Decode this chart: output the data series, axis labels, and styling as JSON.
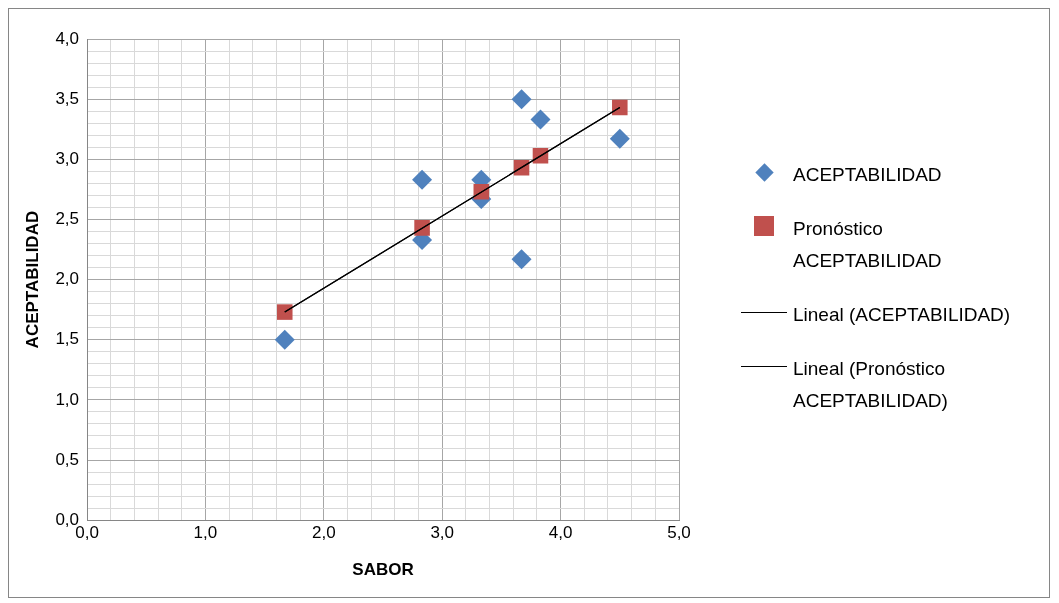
{
  "chart_data": {
    "type": "scatter",
    "xlabel": "SABOR",
    "ylabel": "ACEPTABILIDAD",
    "grid": true,
    "legend": "right",
    "xlim": [
      0,
      5
    ],
    "ylim": [
      0,
      4
    ],
    "xticks": [
      {
        "value": 0,
        "label": "0,0"
      },
      {
        "value": 0.2,
        "label": null
      },
      {
        "value": 0.4,
        "label": null
      },
      {
        "value": 0.6,
        "label": null
      },
      {
        "value": 0.8,
        "label": null
      },
      {
        "value": 1,
        "label": "1,0"
      },
      {
        "value": 1.2,
        "label": null
      },
      {
        "value": 1.4,
        "label": null
      },
      {
        "value": 1.6,
        "label": null
      },
      {
        "value": 1.8,
        "label": null
      },
      {
        "value": 2,
        "label": "2,0"
      },
      {
        "value": 2.2,
        "label": null
      },
      {
        "value": 2.4,
        "label": null
      },
      {
        "value": 2.6,
        "label": null
      },
      {
        "value": 2.8,
        "label": null
      },
      {
        "value": 3,
        "label": "3,0"
      },
      {
        "value": 3.2,
        "label": null
      },
      {
        "value": 3.4,
        "label": null
      },
      {
        "value": 3.6,
        "label": null
      },
      {
        "value": 3.8,
        "label": null
      },
      {
        "value": 4,
        "label": "4,0"
      },
      {
        "value": 4.2,
        "label": null
      },
      {
        "value": 4.4,
        "label": null
      },
      {
        "value": 4.6,
        "label": null
      },
      {
        "value": 4.8,
        "label": null
      },
      {
        "value": 5,
        "label": "5,0"
      }
    ],
    "yticks": [
      {
        "value": 0,
        "label": "0,0"
      },
      {
        "value": 0.1,
        "label": null
      },
      {
        "value": 0.2,
        "label": null
      },
      {
        "value": 0.3,
        "label": null
      },
      {
        "value": 0.4,
        "label": null
      },
      {
        "value": 0.5,
        "label": "0,5"
      },
      {
        "value": 0.6,
        "label": null
      },
      {
        "value": 0.7,
        "label": null
      },
      {
        "value": 0.8,
        "label": null
      },
      {
        "value": 0.9,
        "label": null
      },
      {
        "value": 1,
        "label": "1,0"
      },
      {
        "value": 1.1,
        "label": null
      },
      {
        "value": 1.2,
        "label": null
      },
      {
        "value": 1.3,
        "label": null
      },
      {
        "value": 1.4,
        "label": null
      },
      {
        "value": 1.5,
        "label": "1,5"
      },
      {
        "value": 1.6,
        "label": null
      },
      {
        "value": 1.7,
        "label": null
      },
      {
        "value": 1.8,
        "label": null
      },
      {
        "value": 1.9,
        "label": null
      },
      {
        "value": 2,
        "label": "2,0"
      },
      {
        "value": 2.1,
        "label": null
      },
      {
        "value": 2.2,
        "label": null
      },
      {
        "value": 2.3,
        "label": null
      },
      {
        "value": 2.4,
        "label": null
      },
      {
        "value": 2.5,
        "label": "2,5"
      },
      {
        "value": 2.6,
        "label": null
      },
      {
        "value": 2.7,
        "label": null
      },
      {
        "value": 2.8,
        "label": null
      },
      {
        "value": 2.9,
        "label": null
      },
      {
        "value": 3,
        "label": "3,0"
      },
      {
        "value": 3.1,
        "label": null
      },
      {
        "value": 3.2,
        "label": null
      },
      {
        "value": 3.3,
        "label": null
      },
      {
        "value": 3.4,
        "label": null
      },
      {
        "value": 3.5,
        "label": "3,5"
      },
      {
        "value": 3.6,
        "label": null
      },
      {
        "value": 3.7,
        "label": null
      },
      {
        "value": 3.8,
        "label": null
      },
      {
        "value": 3.9,
        "label": null
      },
      {
        "value": 4,
        "label": "4,0"
      }
    ],
    "series": [
      {
        "name": "ACEPTABILIDAD",
        "marker": "diamond",
        "color": "#4f81bd",
        "x": [
          1.67,
          2.83,
          2.83,
          3.33,
          3.33,
          3.67,
          3.67,
          3.83,
          4.5
        ],
        "values": [
          1.5,
          2.83,
          2.33,
          2.83,
          2.67,
          3.5,
          2.17,
          3.33,
          3.17
        ]
      },
      {
        "name": "Pronóstico ACEPTABILIDAD",
        "marker": "square",
        "color": "#c0504d",
        "x": [
          1.67,
          2.83,
          3.33,
          3.67,
          3.83,
          4.5
        ],
        "values": [
          1.73,
          2.43,
          2.73,
          2.93,
          3.03,
          3.43
        ]
      },
      {
        "name": "Lineal (ACEPTABILIDAD)",
        "type": "line",
        "marker": "none",
        "color": "#000000",
        "x": [
          1.67,
          4.5
        ],
        "values": [
          1.73,
          3.43
        ]
      },
      {
        "name": "Lineal (Pronóstico ACEPTABILIDAD)",
        "type": "line",
        "marker": "none",
        "color": "#000000",
        "x": [
          1.67,
          4.5
        ],
        "values": [
          1.73,
          3.43
        ]
      }
    ]
  }
}
